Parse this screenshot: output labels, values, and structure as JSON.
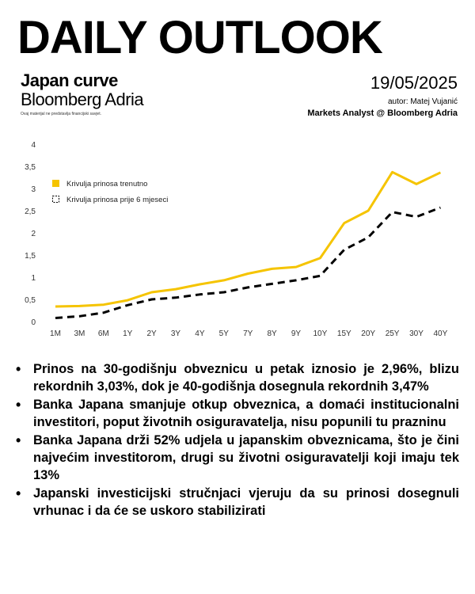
{
  "header": {
    "title": "DAILY OUTLOOK",
    "subtitle": "Japan curve",
    "brand": "Bloomberg Adria",
    "disclaimer": "Ovaj materijal ne predstavlja financijski savjet.",
    "date": "19/05/2025",
    "author": "autor: Matej Vujanić",
    "role": "Markets Analyst @ Bloomberg Adria"
  },
  "colors": {
    "current": "#F5C400",
    "previous": "#000000",
    "tick": "#333333"
  },
  "chart_data": {
    "type": "line",
    "title": "",
    "xlabel": "",
    "ylabel": "",
    "categories": [
      "1M",
      "3M",
      "6M",
      "1Y",
      "2Y",
      "3Y",
      "4Y",
      "5Y",
      "7Y",
      "8Y",
      "9Y",
      "10Y",
      "15Y",
      "20Y",
      "25Y",
      "30Y",
      "40Y"
    ],
    "yticks": [
      "0",
      "0,5",
      "1",
      "1,5",
      "2",
      "2,5",
      "3",
      "3,5",
      "4"
    ],
    "ylim": [
      0,
      4
    ],
    "grid": false,
    "legend_position": "top-left",
    "series": [
      {
        "name": "Krivulja prinosa trenutno",
        "style": "solid",
        "values": [
          0.34,
          0.35,
          0.38,
          0.48,
          0.66,
          0.73,
          0.84,
          0.93,
          1.08,
          1.19,
          1.23,
          1.43,
          2.22,
          2.5,
          3.37,
          3.1,
          3.36
        ]
      },
      {
        "name": "Krivulja prinosa prije 6 mjeseci",
        "style": "dashed",
        "values": [
          0.08,
          0.12,
          0.2,
          0.37,
          0.5,
          0.54,
          0.61,
          0.66,
          0.77,
          0.85,
          0.93,
          1.03,
          1.62,
          1.9,
          2.47,
          2.36,
          2.57
        ]
      }
    ]
  },
  "bullets": [
    "Prinos na 30-godišnju obveznicu u petak iznosio je 2,96%, blizu rekordnih 3,03%, dok je 40-godišnja dosegnula rekordnih 3,47%",
    "Banka Japana smanjuje otkup obveznica, a domaći institucionalni investitori, poput životnih osiguravatelja, nisu popunili tu prazninu",
    "Banka Japana drži 52% udjela u japanskim obveznicama, što je čini najvećim investitorom, drugi su životni osiguravatelji koji imaju tek 13%",
    "Japanski investicijski stručnjaci vjeruju da su prinosi dosegnuli vrhunac i da će se uskoro stabilizirati"
  ]
}
